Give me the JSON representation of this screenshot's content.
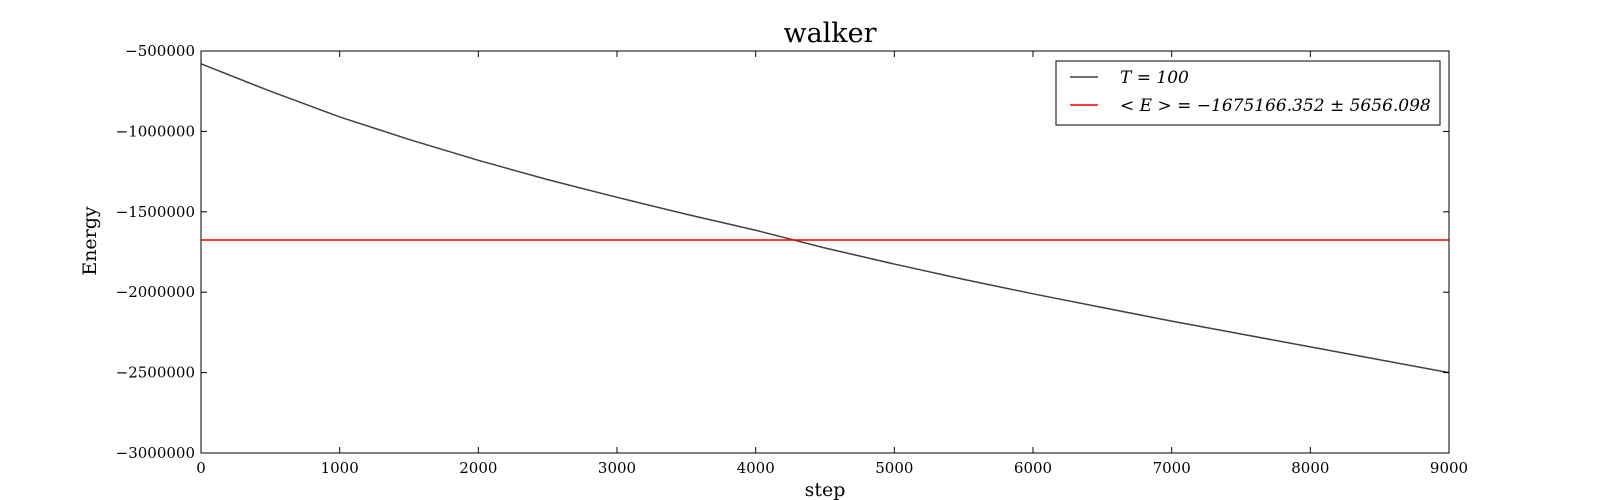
{
  "chart_data": {
    "type": "line",
    "title": "walker",
    "xlabel": "step",
    "ylabel": "Energy",
    "xlim": [
      0,
      9000
    ],
    "ylim": [
      -3000000,
      -500000
    ],
    "xticks": [
      0,
      1000,
      2000,
      3000,
      4000,
      5000,
      6000,
      7000,
      8000,
      9000
    ],
    "yticks": [
      -500000,
      -1000000,
      -1500000,
      -2000000,
      -2500000,
      -3000000
    ],
    "xtick_labels": [
      "0",
      "1000",
      "2000",
      "3000",
      "4000",
      "5000",
      "6000",
      "7000",
      "8000",
      "9000"
    ],
    "ytick_labels": [
      "−500000",
      "−1000000",
      "−1500000",
      "−2000000",
      "−2500000",
      "−3000000"
    ],
    "grid": false,
    "legend_position": "top-right",
    "series": [
      {
        "name": "T = 100",
        "color": "#404040",
        "x": [
          0,
          500,
          1000,
          1500,
          2000,
          2500,
          3000,
          3500,
          4000,
          4500,
          5000,
          5500,
          6000,
          6500,
          7000,
          7500,
          8000,
          8500,
          9000
        ],
        "y": [
          -580000,
          -750000,
          -910000,
          -1050000,
          -1180000,
          -1300000,
          -1410000,
          -1515000,
          -1615000,
          -1725000,
          -1825000,
          -1920000,
          -2010000,
          -2095000,
          -2180000,
          -2260000,
          -2340000,
          -2420000,
          -2500000
        ]
      },
      {
        "name": "< E > = −1675166.352 ± 5656.098",
        "color": "#ff0000",
        "x": [
          0,
          9000
        ],
        "y": [
          -1675166.352,
          -1675166.352
        ]
      }
    ]
  }
}
